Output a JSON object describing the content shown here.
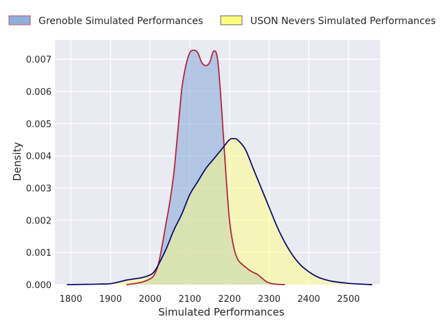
{
  "chart_data": {
    "type": "area",
    "title": "",
    "xlabel": "Simulated Performances",
    "ylabel": "Density",
    "xlim": [
      1760,
      2580
    ],
    "ylim": [
      0,
      0.0076
    ],
    "xticks": [
      1800,
      1900,
      2000,
      2100,
      2200,
      2300,
      2400,
      2500
    ],
    "yticks": [
      0.0,
      0.001,
      0.002,
      0.003,
      0.004,
      0.005,
      0.006,
      0.007
    ],
    "ytick_labels": [
      "0.000",
      "0.001",
      "0.002",
      "0.003",
      "0.004",
      "0.005",
      "0.006",
      "0.007"
    ],
    "grid": true,
    "legend_position": "top",
    "series": [
      {
        "name": "Grenoble Simulated Performances",
        "fill": "#7aa0d4",
        "line": "#b0253a",
        "x": [
          1940,
          1960,
          1980,
          2000,
          2010,
          2020,
          2030,
          2040,
          2050,
          2060,
          2070,
          2080,
          2090,
          2100,
          2110,
          2120,
          2130,
          2140,
          2150,
          2160,
          2170,
          2180,
          2190,
          2200,
          2210,
          2220,
          2230,
          2240,
          2250,
          2260,
          2270,
          2280,
          2290,
          2300,
          2320,
          2340
        ],
        "y": [
          0.0,
          3e-05,
          8e-05,
          0.00018,
          0.0003,
          0.0006,
          0.0012,
          0.0019,
          0.0026,
          0.0035,
          0.0048,
          0.0061,
          0.0068,
          0.0072,
          0.00728,
          0.0072,
          0.0069,
          0.0068,
          0.0069,
          0.00725,
          0.007,
          0.0055,
          0.0036,
          0.002,
          0.0012,
          0.0008,
          0.00065,
          0.00055,
          0.00045,
          0.00038,
          0.00032,
          0.00022,
          0.00012,
          5e-05,
          1e-05,
          0.0
        ]
      },
      {
        "name": "USON Nevers Simulated Performances",
        "fill": "#ffff80",
        "line": "#0a0a6e",
        "x": [
          1790,
          1850,
          1880,
          1900,
          1920,
          1940,
          1960,
          1980,
          2000,
          2010,
          2020,
          2040,
          2060,
          2080,
          2100,
          2120,
          2140,
          2160,
          2180,
          2200,
          2210,
          2220,
          2240,
          2260,
          2280,
          2300,
          2320,
          2340,
          2360,
          2380,
          2400,
          2420,
          2440,
          2460,
          2500,
          2540,
          2560
        ],
        "y": [
          0.0,
          1e-05,
          2e-05,
          3e-05,
          8e-05,
          0.00014,
          0.00018,
          0.00022,
          0.0003,
          0.0004,
          0.0006,
          0.0011,
          0.0017,
          0.0022,
          0.0028,
          0.0032,
          0.0036,
          0.0039,
          0.0042,
          0.0045,
          0.00453,
          0.0045,
          0.0042,
          0.0036,
          0.003,
          0.0024,
          0.0018,
          0.0013,
          0.0009,
          0.0006,
          0.0004,
          0.00025,
          0.00016,
          0.0001,
          4e-05,
          1e-05,
          0.0
        ]
      }
    ]
  }
}
